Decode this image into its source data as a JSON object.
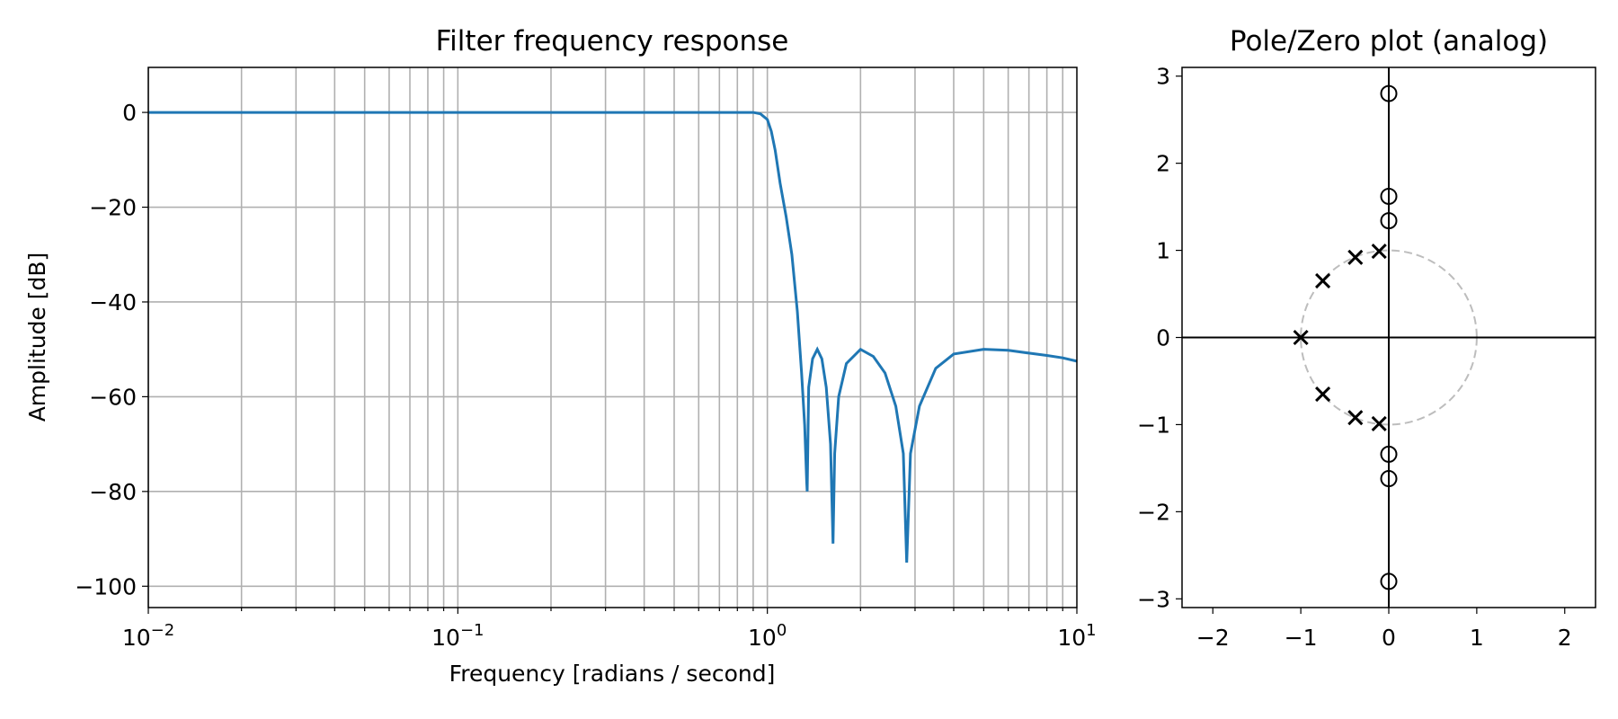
{
  "chart_data": [
    {
      "type": "line",
      "title": "Filter frequency response",
      "xlabel": "Frequency [radians / second]",
      "ylabel": "Amplitude [dB]",
      "xscale": "log",
      "xlim": [
        0.01,
        10
      ],
      "ylim": [
        -104.5,
        9.5
      ],
      "grid": true,
      "x_ticks": [
        0.01,
        0.1,
        1,
        10
      ],
      "x_tick_labels": [
        {
          "base": "10",
          "exp": "−2"
        },
        {
          "base": "10",
          "exp": "−1"
        },
        {
          "base": "10",
          "exp": "0"
        },
        {
          "base": "10",
          "exp": "1"
        }
      ],
      "y_ticks": [
        0,
        -20,
        -40,
        -60,
        -80,
        -100
      ],
      "y_tick_labels": [
        "0",
        "−20",
        "−40",
        "−60",
        "−80",
        "−100"
      ],
      "color": "#1f77b4",
      "series": [
        {
          "x": [
            0.01,
            0.02,
            0.05,
            0.1,
            0.2,
            0.4,
            0.6,
            0.8,
            0.9,
            0.95,
            1.0,
            1.03,
            1.06,
            1.1,
            1.15,
            1.2,
            1.25,
            1.29,
            1.32,
            1.34,
            1.345,
            1.36,
            1.4,
            1.45,
            1.5,
            1.55,
            1.6,
            1.63,
            1.65,
            1.7,
            1.8,
            2.0,
            2.2,
            2.4,
            2.6,
            2.75,
            2.82,
            2.9,
            3.1,
            3.5,
            4.0,
            5.0,
            6.0,
            7.0,
            8.0,
            9.0,
            10.0
          ],
          "y": [
            0,
            0,
            0,
            0,
            0,
            0,
            0,
            0,
            0,
            -0.3,
            -1.5,
            -4,
            -8,
            -15,
            -22,
            -30,
            -42,
            -55,
            -66,
            -78,
            -80,
            -58,
            -52,
            -50,
            -52,
            -58,
            -70,
            -91,
            -72,
            -60,
            -53,
            -50,
            -51.5,
            -55,
            -62,
            -72,
            -95,
            -72,
            -62,
            -54,
            -51,
            -50,
            -50.2,
            -50.8,
            -51.3,
            -51.8,
            -52.5
          ]
        }
      ]
    },
    {
      "type": "scatter",
      "title": "Pole/Zero plot (analog)",
      "xlim": [
        -2.35,
        2.35
      ],
      "ylim": [
        -3.1,
        3.1
      ],
      "x_ticks": [
        -2,
        -1,
        0,
        1,
        2
      ],
      "x_tick_labels": [
        "−2",
        "−1",
        "0",
        "1",
        "2"
      ],
      "y_ticks": [
        3,
        2,
        1,
        0,
        -1,
        -2,
        -3
      ],
      "y_tick_labels": [
        "3",
        "2",
        "1",
        "0",
        "−1",
        "−2",
        "−3"
      ],
      "unit_circle": true,
      "zeros": [
        {
          "re": 0,
          "im": 2.8
        },
        {
          "re": 0,
          "im": 1.62
        },
        {
          "re": 0,
          "im": 1.34
        },
        {
          "re": 0,
          "im": -1.34
        },
        {
          "re": 0,
          "im": -1.62
        },
        {
          "re": 0,
          "im": -2.8
        }
      ],
      "poles": [
        {
          "re": -1.0,
          "im": 0
        },
        {
          "re": -0.75,
          "im": 0.65
        },
        {
          "re": -0.38,
          "im": 0.92
        },
        {
          "re": -0.11,
          "im": 0.99
        },
        {
          "re": -0.75,
          "im": -0.65
        },
        {
          "re": -0.38,
          "im": -0.92
        },
        {
          "re": -0.11,
          "im": -0.99
        }
      ]
    }
  ]
}
